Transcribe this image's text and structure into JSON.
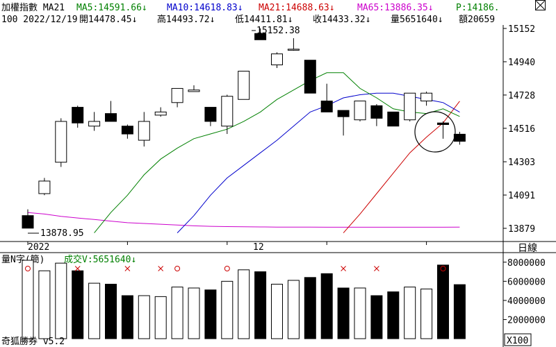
{
  "header": {
    "title": "加權指數 MA21",
    "line2_prefix": "100 2022/12/19",
    "open": "開14478.45↓",
    "high": "高14493.72↓",
    "low": "低14411.81↓",
    "close": "收14433.32↓",
    "volume": "量5651640↓",
    "amount": "額20659"
  },
  "ma_legend": [
    {
      "text": "MA5:14591.66↓",
      "color": "#008000"
    },
    {
      "text": "MA10:14618.83↓",
      "color": "#0000cc"
    },
    {
      "text": "MA21:14688.63↓",
      "color": "#cc0000"
    },
    {
      "text": "MA65:13886.35↓",
      "color": "#cc00cc"
    },
    {
      "text": "P:14186.",
      "color": "#008000"
    }
  ],
  "price_axis": [
    "15152",
    "14940",
    "14728",
    "14516",
    "14303",
    "14091",
    "13879"
  ],
  "volume_axis": [
    "8000000",
    "6000000",
    "4000000",
    "2000000"
  ],
  "x_labels": [
    {
      "text": "2022",
      "index": 0
    },
    {
      "text": "12",
      "index": 14
    }
  ],
  "annotations": {
    "high_label": "15152.38",
    "low_label": "13878.95"
  },
  "period_label": "日線",
  "volume_panel": {
    "title": "量N字(簡)",
    "volume_label": "成交V:5651640↓"
  },
  "footer": {
    "brand": "奇狐勝券 v5.2",
    "zoom": "X100"
  },
  "colors": {
    "ma5": "#008000",
    "ma10": "#0000cc",
    "ma21": "#cc0000",
    "ma65": "#cc00cc",
    "signal": "#cc0000"
  },
  "chart_data": [
    {
      "type": "candlestick",
      "price_range": [
        13879,
        15152
      ],
      "candles": [
        {
          "open": 13960,
          "high": 14000,
          "low": 13879,
          "close": 13880
        },
        {
          "open": 14100,
          "high": 14200,
          "low": 14090,
          "close": 14180
        },
        {
          "open": 14300,
          "high": 14580,
          "low": 14270,
          "close": 14560
        },
        {
          "open": 14650,
          "high": 14660,
          "low": 14520,
          "close": 14550
        },
        {
          "open": 14530,
          "high": 14620,
          "low": 14500,
          "close": 14560
        },
        {
          "open": 14610,
          "high": 14690,
          "low": 14560,
          "close": 14560
        },
        {
          "open": 14530,
          "high": 14540,
          "low": 14450,
          "close": 14480
        },
        {
          "open": 14440,
          "high": 14620,
          "low": 14400,
          "close": 14560
        },
        {
          "open": 14600,
          "high": 14650,
          "low": 14590,
          "close": 14620
        },
        {
          "open": 14680,
          "high": 14770,
          "low": 14650,
          "close": 14770
        },
        {
          "open": 14750,
          "high": 14790,
          "low": 14750,
          "close": 14760
        },
        {
          "open": 14650,
          "high": 14650,
          "low": 14530,
          "close": 14560
        },
        {
          "open": 14530,
          "high": 14730,
          "low": 14480,
          "close": 14720
        },
        {
          "open": 14700,
          "high": 14880,
          "low": 14700,
          "close": 14880
        },
        {
          "open": 15120,
          "high": 15152.38,
          "low": 15080,
          "close": 15080
        },
        {
          "open": 14920,
          "high": 15000,
          "low": 14900,
          "close": 14990
        },
        {
          "open": 15020,
          "high": 15090,
          "low": 15010,
          "close": 15020
        },
        {
          "open": 14950,
          "high": 14950,
          "low": 14740,
          "close": 14740
        },
        {
          "open": 14690,
          "high": 14800,
          "low": 14620,
          "close": 14620
        },
        {
          "open": 14630,
          "high": 14630,
          "low": 14470,
          "close": 14590
        },
        {
          "open": 14570,
          "high": 14690,
          "low": 14560,
          "close": 14690
        },
        {
          "open": 14660,
          "high": 14670,
          "low": 14530,
          "close": 14580
        },
        {
          "open": 14620,
          "high": 14620,
          "low": 14530,
          "close": 14530
        },
        {
          "open": 14570,
          "high": 14740,
          "low": 14560,
          "close": 14740
        },
        {
          "open": 14690,
          "high": 14750,
          "low": 14660,
          "close": 14740
        },
        {
          "open": 14550,
          "high": 14560,
          "low": 14450,
          "close": 14540
        },
        {
          "open": 14478.45,
          "high": 14493.72,
          "low": 14411.81,
          "close": 14433.32
        }
      ],
      "ma5": [
        null,
        null,
        null,
        null,
        13850,
        13980,
        14090,
        14220,
        14320,
        14390,
        14450,
        14480,
        14510,
        14560,
        14620,
        14700,
        14760,
        14820,
        14870,
        14870,
        14770,
        14710,
        14640,
        14620,
        14610,
        14640,
        14591.66
      ],
      "ma10": [
        null,
        null,
        null,
        null,
        null,
        null,
        null,
        null,
        null,
        13850,
        13960,
        14090,
        14200,
        14280,
        14360,
        14440,
        14530,
        14620,
        14660,
        14710,
        14730,
        14740,
        14740,
        14720,
        14700,
        14680,
        14618.83
      ],
      "ma21": [
        null,
        null,
        null,
        null,
        null,
        null,
        null,
        null,
        null,
        null,
        null,
        null,
        null,
        null,
        null,
        null,
        null,
        null,
        null,
        13850,
        13970,
        14100,
        14230,
        14360,
        14460,
        14550,
        14688.63
      ],
      "ma65": [
        13980,
        13970,
        13955,
        13945,
        13935,
        13925,
        13915,
        13910,
        13905,
        13900,
        13895,
        13892,
        13890,
        13889,
        13888,
        13887,
        13887,
        13887,
        13886,
        13886,
        13886,
        13886,
        13886,
        13886,
        13886,
        13886,
        13886.35
      ]
    },
    {
      "type": "bar",
      "title": "量N字(簡)",
      "ylim": [
        0,
        9000000
      ],
      "volumes": [
        8200000,
        7100000,
        7900000,
        7100000,
        5800000,
        5700000,
        4500000,
        4500000,
        4400000,
        5400000,
        5300000,
        5100000,
        6000000,
        7200000,
        7000000,
        5700000,
        6100000,
        6400000,
        6800000,
        5300000,
        5300000,
        4500000,
        4900000,
        5400000,
        5200000,
        7700000,
        5651640
      ],
      "down": [
        false,
        false,
        false,
        true,
        false,
        true,
        true,
        false,
        false,
        false,
        false,
        true,
        false,
        false,
        true,
        false,
        false,
        true,
        true,
        true,
        false,
        true,
        true,
        false,
        false,
        true,
        true
      ],
      "signals": [
        {
          "index": 0,
          "mark": "o"
        },
        {
          "index": 3,
          "mark": "x"
        },
        {
          "index": 6,
          "mark": "x"
        },
        {
          "index": 8,
          "mark": "x"
        },
        {
          "index": 9,
          "mark": "o"
        },
        {
          "index": 12,
          "mark": "o"
        },
        {
          "index": 19,
          "mark": "x"
        },
        {
          "index": 21,
          "mark": "x"
        },
        {
          "index": 25,
          "mark": "o"
        }
      ]
    }
  ]
}
